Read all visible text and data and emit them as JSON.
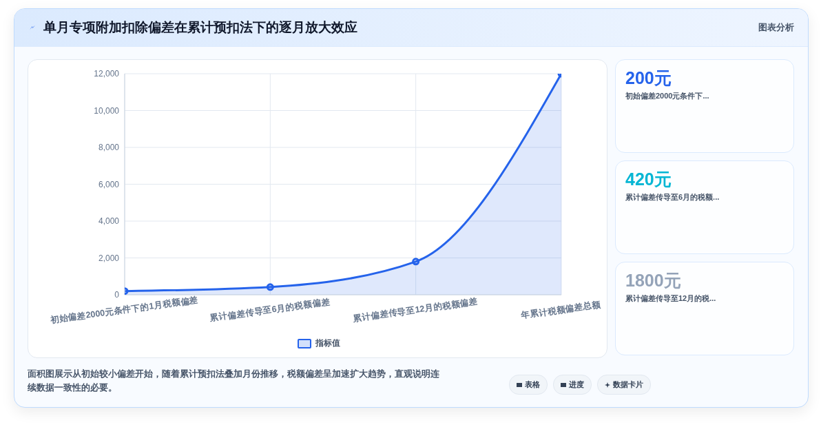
{
  "chart_data": [
    {
      "type": "area",
      "title": "单月专项附加扣除偏差在累计预扣法下的逐月放大效应",
      "categories": [
        "初始偏差2000元条件下的1月税额偏差",
        "累计偏差传导至6月的税额偏差",
        "累计偏差传导至12月的税额偏差",
        "年累计税额偏差总额"
      ],
      "series": [
        {
          "name": "指标值",
          "color": "#2563eb",
          "values": [
            200,
            420,
            1800,
            12000
          ]
        }
      ],
      "ylim": [
        0,
        12000
      ],
      "yticks": [
        {
          "value": 0,
          "label": "0"
        },
        {
          "value": 2000,
          "label": "2,000"
        },
        {
          "value": 4000,
          "label": "4,000"
        },
        {
          "value": 6000,
          "label": "6,000"
        },
        {
          "value": 8000,
          "label": "8,000"
        },
        {
          "value": 10000,
          "label": "10,000"
        },
        {
          "value": 12000,
          "label": "12,000"
        }
      ],
      "grid": true,
      "legend": "bottom",
      "marker": "circle",
      "annotations": [
        "图表分析",
        "面积图展示从初始较小偏差开始，随着累计预扣法叠加月份推移，税额偏差呈加速扩大趋势，直观说明连续数据一致性的必要。",
        "表格",
        "进度",
        "数据卡片"
      ]
    },
    {
      "type": "other",
      "annotations": [
        "200元",
        "初始偏差2000元条件下...",
        "420元",
        "累计偏差传导至6月的税额...",
        "1800元",
        "累计偏差传导至12月的税..."
      ]
    }
  ]
}
